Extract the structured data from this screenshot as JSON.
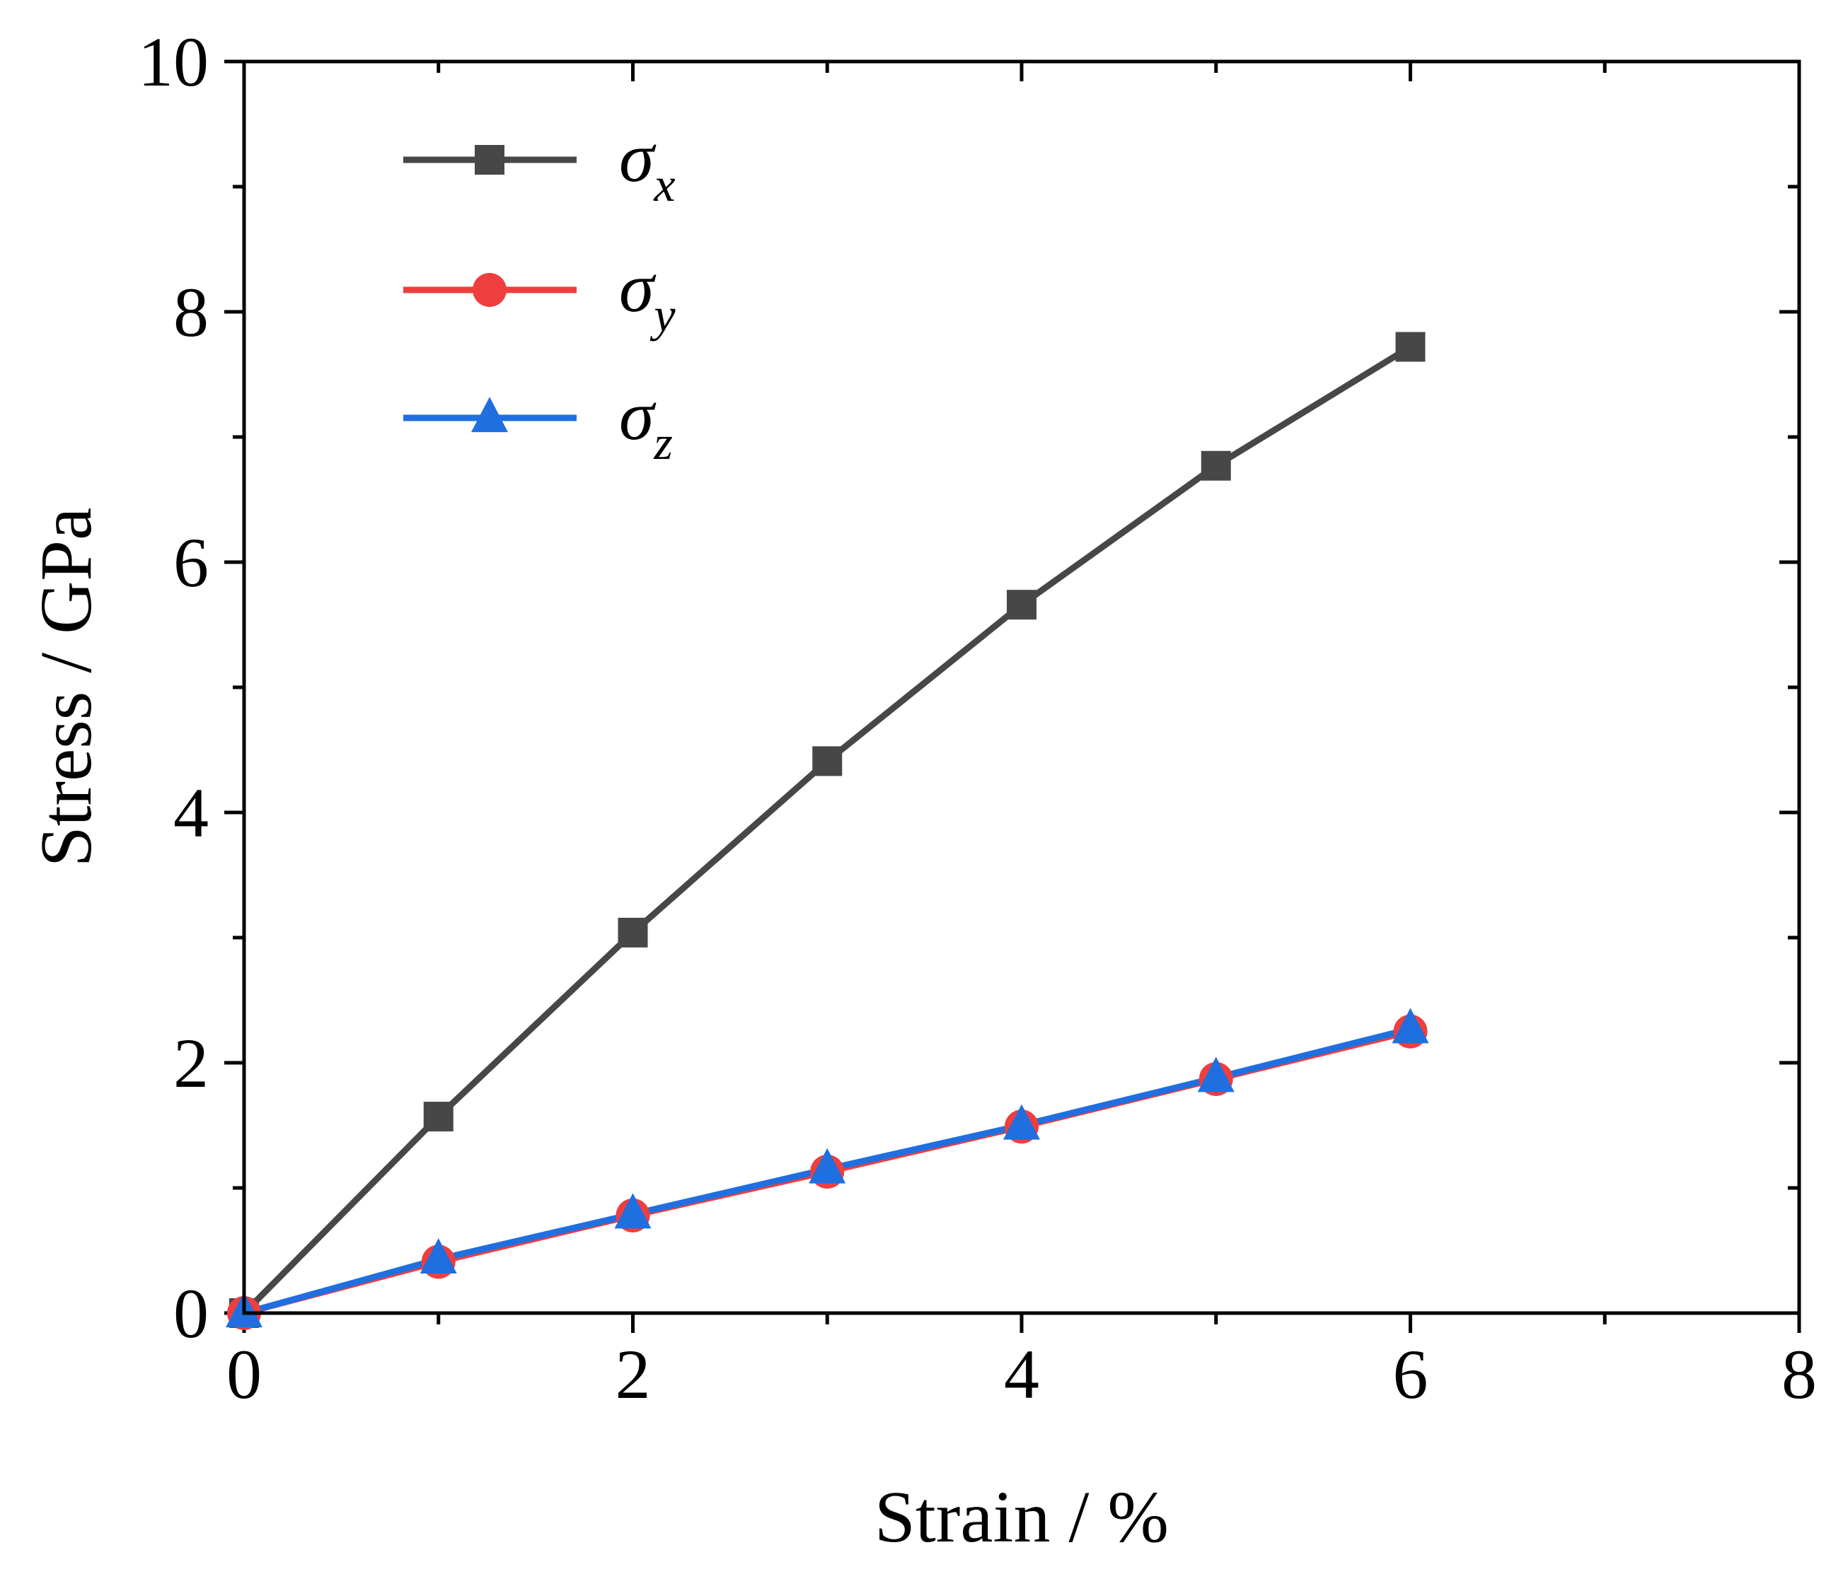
{
  "chart_data": {
    "type": "line",
    "xlabel": "Strain / %",
    "ylabel": "Stress / GPa",
    "xlim": [
      0,
      8
    ],
    "ylim": [
      0,
      10
    ],
    "x_ticks": [
      0,
      2,
      4,
      6,
      8
    ],
    "y_ticks": [
      0,
      2,
      4,
      6,
      8,
      10
    ],
    "x_tick_labels": [
      "0",
      "2",
      "4",
      "6",
      "8"
    ],
    "y_tick_labels": [
      "0",
      "2",
      "4",
      "6",
      "8",
      "10"
    ],
    "grid": false,
    "legend_position": "top-left",
    "x": [
      0,
      1,
      2,
      3,
      4,
      5,
      6
    ],
    "series": [
      {
        "name": "σx",
        "symbol": "σ",
        "subscript": "x",
        "marker": "square",
        "color": "#474747",
        "values": [
          0,
          1.57,
          3.04,
          4.41,
          5.66,
          6.77,
          7.72
        ]
      },
      {
        "name": "σy",
        "symbol": "σ",
        "subscript": "y",
        "marker": "circle",
        "color": "#ef3e3e",
        "values": [
          0,
          0.41,
          0.78,
          1.13,
          1.49,
          1.87,
          2.25
        ]
      },
      {
        "name": "σz",
        "symbol": "σ",
        "subscript": "z",
        "marker": "triangle",
        "color": "#1f6fe0",
        "values": [
          0,
          0.43,
          0.79,
          1.15,
          1.5,
          1.88,
          2.27
        ]
      }
    ]
  }
}
